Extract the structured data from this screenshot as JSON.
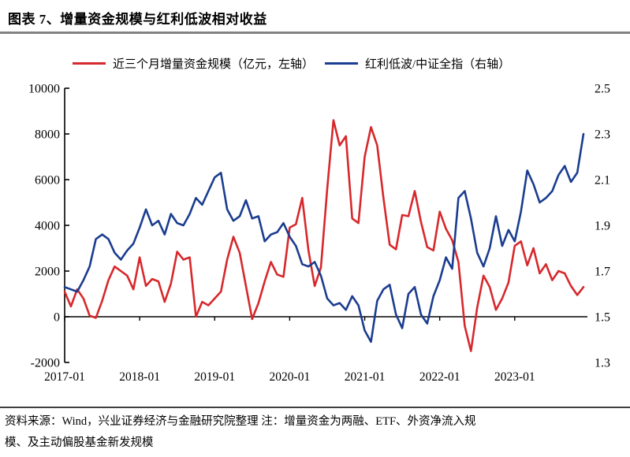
{
  "title": "图表 7、增量资金规模与红利低波相对收益",
  "legend": [
    {
      "label": "近三个月增量资金规模（亿元，左轴）",
      "color": "#d7282c"
    },
    {
      "label": "红利低波/中证全指（右轴）",
      "color": "#1b3d8f"
    }
  ],
  "source_note": {
    "line1": "资料来源：Wind，兴业证券经济与金融研究院整理  注：增量资金为两融、ETF、外资净流入规",
    "line2": "模、及主动偏股基金新发规模"
  },
  "colors": {
    "red_series": "#d7282c",
    "blue_series": "#1b3d8f",
    "axis": "#000000"
  },
  "chart_data": {
    "type": "line",
    "title": "增量资金规模与红利低波相对收益",
    "x_tick_labels": [
      "2017-01",
      "2018-01",
      "2019-01",
      "2020-01",
      "2021-01",
      "2022-01",
      "2023-01"
    ],
    "x_sampling": "monthly from 2017-01 to 2023-12 (84 points)",
    "left_axis": {
      "label": "亿元",
      "ticks": [
        10000,
        8000,
        6000,
        4000,
        2000,
        0,
        -2000
      ],
      "range": [
        -2000,
        10000
      ]
    },
    "right_axis": {
      "label": "红利低波/中证全指",
      "ticks": [
        2.5,
        2.3,
        2.1,
        1.9,
        1.7,
        1.5,
        1.3
      ],
      "range": [
        1.3,
        2.5
      ]
    },
    "grid": false,
    "legend_position": "top",
    "series": [
      {
        "name": "近三个月增量资金规模（亿元，左轴）",
        "axis": "left",
        "color": "#d7282c",
        "values": [
          1100,
          450,
          1200,
          800,
          50,
          -50,
          700,
          1600,
          2200,
          2000,
          1800,
          1200,
          2600,
          1350,
          1650,
          1550,
          650,
          1450,
          2850,
          2500,
          2600,
          0,
          650,
          500,
          800,
          1100,
          2500,
          3500,
          2800,
          1350,
          -100,
          600,
          1550,
          2400,
          1850,
          1750,
          3900,
          4050,
          5200,
          2900,
          1350,
          2150,
          5600,
          8600,
          7500,
          7900,
          4300,
          4100,
          7000,
          8300,
          7500,
          5200,
          3150,
          2950,
          4450,
          4400,
          5500,
          4150,
          3050,
          2900,
          4600,
          3850,
          3350,
          2400,
          -400,
          -1500,
          400,
          1800,
          1300,
          300,
          800,
          1500,
          3100,
          3300,
          2250,
          3000,
          1900,
          2300,
          1600,
          2000,
          1900,
          1350,
          950,
          1300
        ]
      },
      {
        "name": "红利低波/中证全指（右轴）",
        "axis": "right",
        "color": "#1b3d8f",
        "values": [
          1.63,
          1.62,
          1.61,
          1.66,
          1.72,
          1.84,
          1.86,
          1.84,
          1.78,
          1.75,
          1.79,
          1.82,
          1.89,
          1.97,
          1.9,
          1.92,
          1.86,
          1.95,
          1.91,
          1.9,
          1.95,
          2.02,
          1.99,
          2.05,
          2.11,
          2.13,
          1.97,
          1.92,
          1.94,
          2.01,
          1.93,
          1.94,
          1.83,
          1.86,
          1.87,
          1.91,
          1.85,
          1.81,
          1.73,
          1.72,
          1.74,
          1.68,
          1.58,
          1.55,
          1.56,
          1.53,
          1.59,
          1.55,
          1.44,
          1.39,
          1.57,
          1.62,
          1.64,
          1.51,
          1.45,
          1.6,
          1.63,
          1.51,
          1.47,
          1.59,
          1.66,
          1.76,
          1.71,
          2.02,
          2.05,
          1.93,
          1.78,
          1.72,
          1.8,
          1.94,
          1.81,
          1.88,
          1.83,
          1.96,
          2.14,
          2.08,
          2.0,
          2.02,
          2.05,
          2.12,
          2.16,
          2.09,
          2.13,
          2.3
        ]
      }
    ]
  }
}
